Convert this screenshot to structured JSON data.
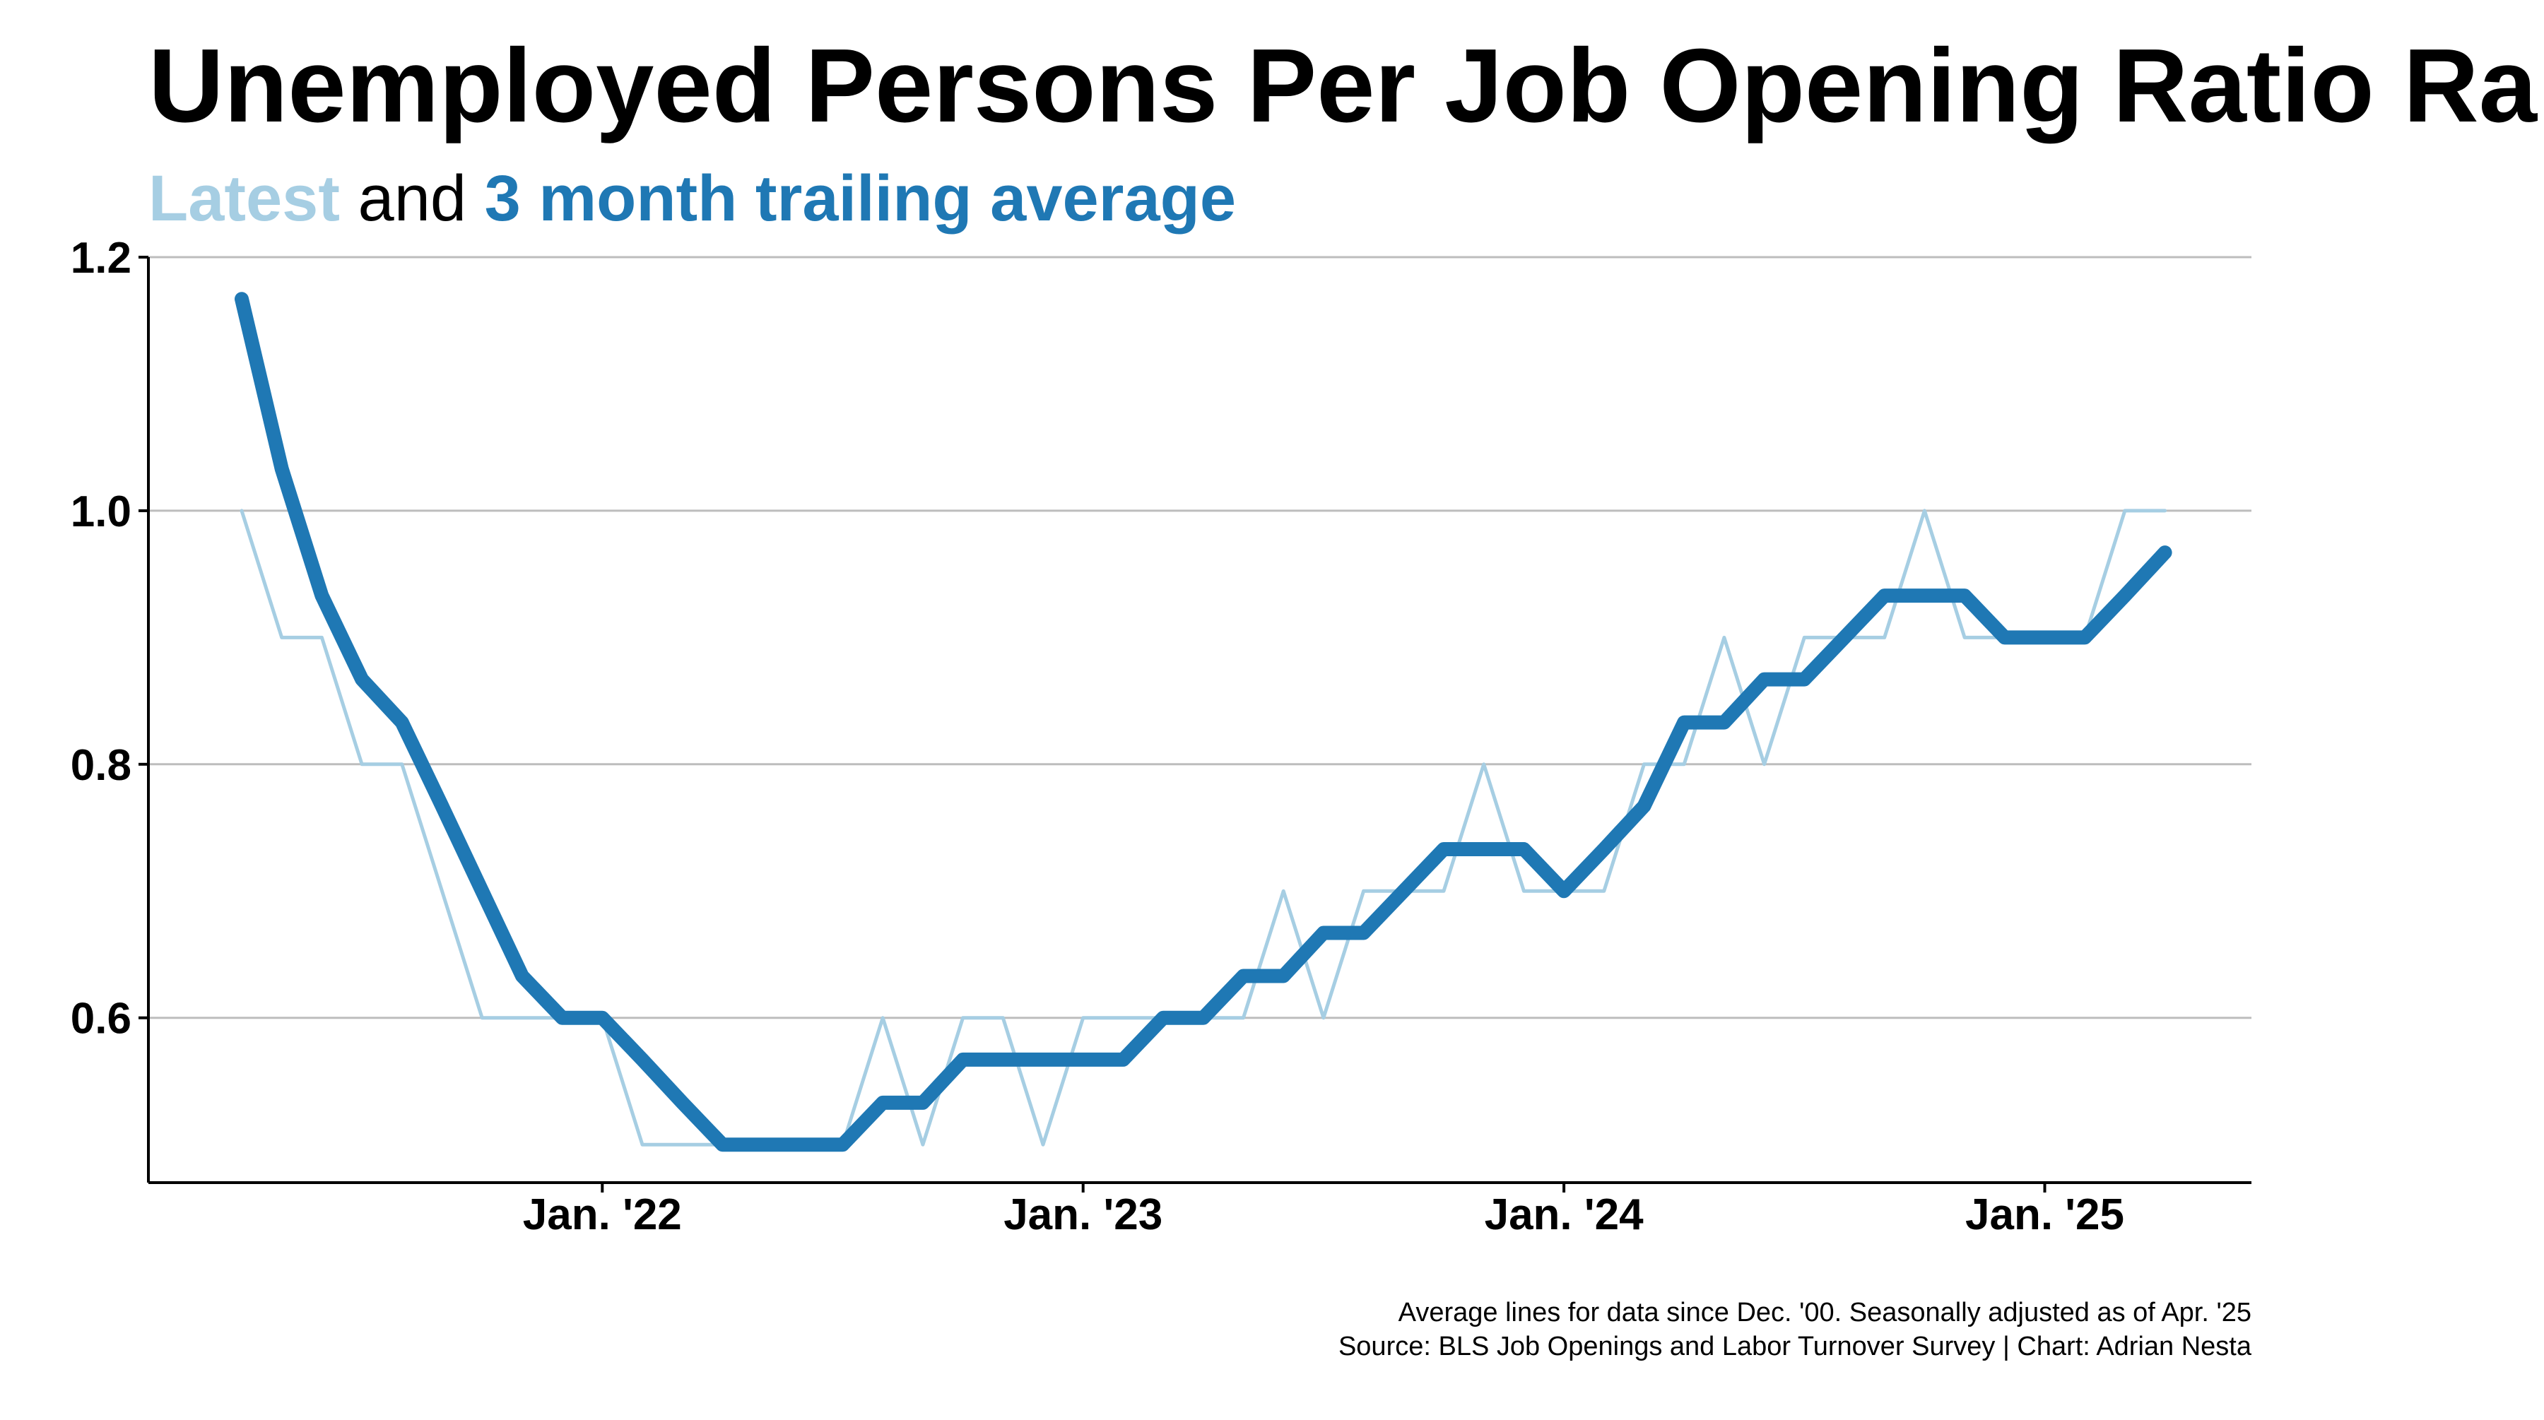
{
  "chart_data": {
    "type": "line",
    "title": "Unemployed Persons Per Job Opening Ratio Ra",
    "subtitle": {
      "part1": "Latest",
      "part2": " and ",
      "part3": "3 month trailing average"
    },
    "xlabel": "",
    "ylabel": "",
    "ylim": [
      0.47,
      1.2
    ],
    "yticks": [
      {
        "value": 0.6,
        "label": "0.6"
      },
      {
        "value": 0.8,
        "label": "0.8"
      },
      {
        "value": 1.0,
        "label": "1.0"
      },
      {
        "value": 1.2,
        "label": "1.2"
      }
    ],
    "xticks": [
      {
        "index": 9,
        "label": "Jan. '22"
      },
      {
        "index": 21,
        "label": "Jan. '23"
      },
      {
        "index": 33,
        "label": "Jan. '24"
      },
      {
        "index": 45,
        "label": "Jan. '25"
      }
    ],
    "grid": true,
    "colors": {
      "latest": "#a6cee3",
      "average": "#1f78b4",
      "grid": "#bdbdbd",
      "axis": "#000000"
    },
    "series": [
      {
        "key": "latest",
        "values": [
          1.0,
          0.9,
          0.9,
          0.8,
          0.8,
          0.7,
          0.6,
          0.6,
          0.6,
          0.6,
          0.5,
          0.5,
          0.5,
          0.5,
          0.5,
          0.5,
          0.6,
          0.5,
          0.6,
          0.6,
          0.5,
          0.6,
          0.6,
          0.6,
          0.6,
          0.6,
          0.7,
          0.6,
          0.7,
          0.7,
          0.7,
          0.8,
          0.7,
          0.7,
          0.7,
          0.8,
          0.8,
          0.9,
          0.8,
          0.9,
          0.9,
          0.9,
          1.0,
          0.9,
          0.9,
          0.9,
          0.9,
          1.0,
          1.0
        ]
      },
      {
        "key": "average",
        "values": [
          1.167,
          1.033,
          0.933,
          0.867,
          0.833,
          0.767,
          0.7,
          0.633,
          0.6,
          0.6,
          0.567,
          0.533,
          0.5,
          0.5,
          0.5,
          0.5,
          0.533,
          0.533,
          0.567,
          0.567,
          0.567,
          0.567,
          0.567,
          0.6,
          0.6,
          0.633,
          0.633,
          0.667,
          0.667,
          0.7,
          0.733,
          0.733,
          0.733,
          0.7,
          0.733,
          0.767,
          0.833,
          0.833,
          0.867,
          0.867,
          0.9,
          0.933,
          0.933,
          0.933,
          0.9,
          0.9,
          0.9,
          0.933,
          0.967
        ]
      }
    ],
    "notes": [
      "Average lines for data since Dec. '00. Seasonally adjusted as of Apr. '25",
      "Source: BLS Job Openings and Labor Turnover Survey | Chart: Adrian Nesta"
    ]
  }
}
